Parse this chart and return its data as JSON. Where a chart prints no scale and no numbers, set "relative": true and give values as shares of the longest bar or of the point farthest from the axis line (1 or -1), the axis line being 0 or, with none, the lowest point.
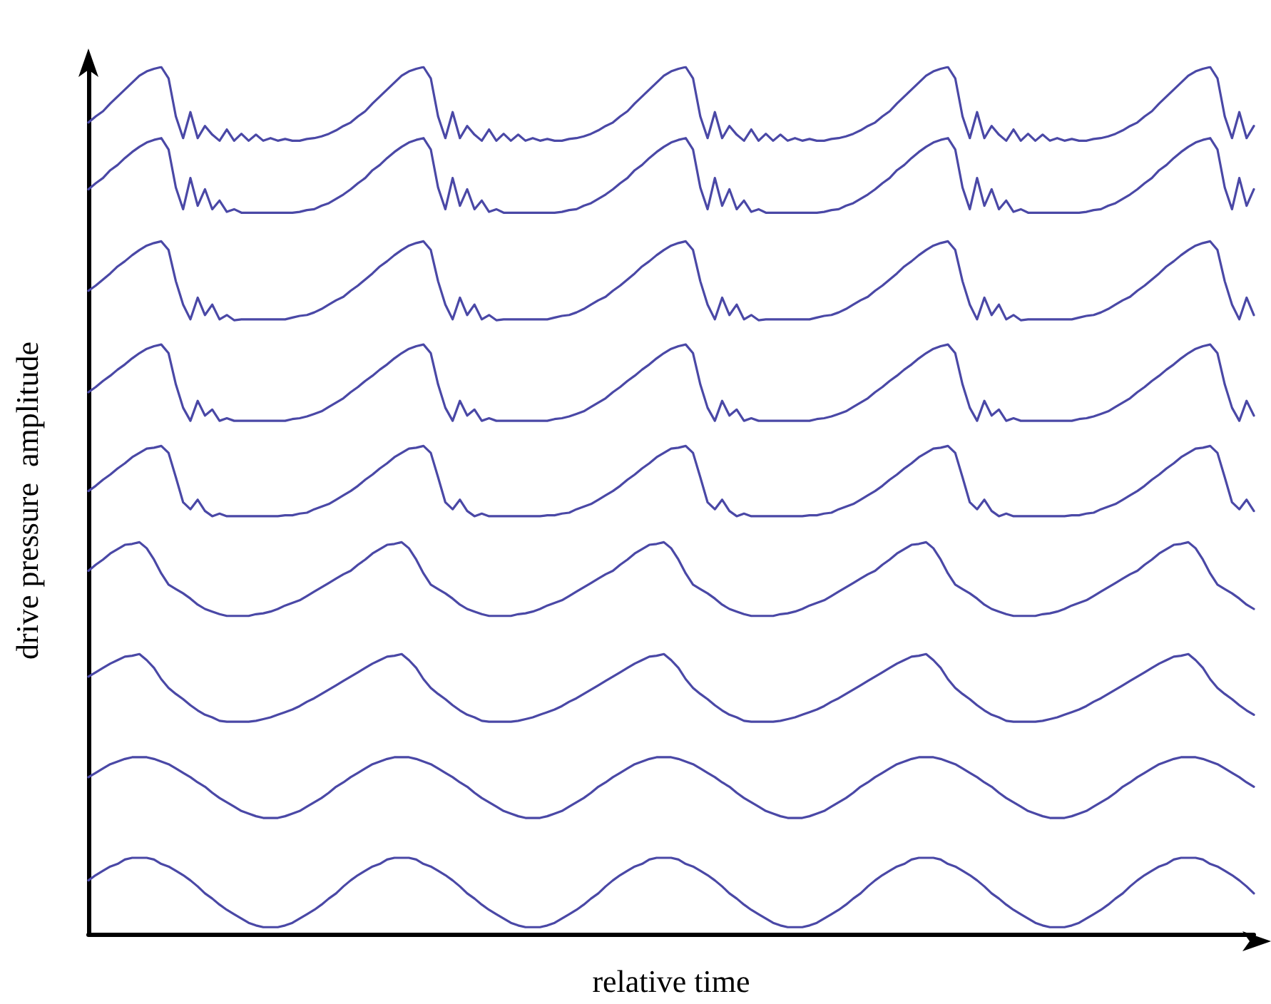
{
  "chart_data": {
    "type": "line",
    "xlabel": "relative time",
    "ylabel": "drive pressure  amplitude",
    "relative": true,
    "grid": false,
    "line_style": "solid",
    "categories": [
      null,
      null,
      null,
      null,
      null,
      null,
      null,
      null,
      null,
      null,
      null,
      null,
      null,
      null,
      null,
      null,
      null,
      null,
      null,
      null,
      null,
      null,
      null,
      null,
      null,
      null,
      null,
      null,
      null,
      null,
      null,
      null,
      null,
      null,
      null,
      null,
      null,
      null,
      null,
      null,
      null,
      null,
      null,
      null,
      null,
      null,
      null,
      null,
      null,
      null,
      null,
      null,
      null,
      null,
      null,
      null,
      null,
      null,
      null,
      null,
      null,
      null,
      null,
      null,
      null,
      null,
      null,
      null,
      null,
      null,
      null,
      null,
      null,
      null,
      null,
      null,
      null,
      null,
      null,
      null,
      null,
      null,
      null,
      null,
      null,
      null,
      null,
      null,
      null,
      null,
      null,
      null,
      null,
      null,
      null,
      null,
      null,
      null,
      null,
      null,
      null,
      null,
      null,
      null,
      null,
      null,
      null,
      null,
      null,
      null,
      null,
      null,
      null,
      null,
      null,
      null,
      null,
      null,
      null,
      null,
      null,
      null,
      null,
      null,
      null,
      null,
      null,
      null,
      null,
      null,
      null,
      null,
      null,
      null,
      null,
      null,
      null,
      null,
      null,
      null,
      null,
      null,
      null,
      null,
      null,
      null,
      null,
      null,
      null,
      null,
      null,
      null,
      null,
      null,
      null,
      null,
      null,
      null,
      null,
      null,
      null
    ],
    "series": [
      {
        "color": "#4a48a6",
        "values": [
          0.936,
          0.943,
          0.949,
          0.958,
          0.966,
          0.974,
          0.982,
          0.99,
          0.995,
          0.998,
          1,
          0.987,
          0.943,
          0.918,
          0.948,
          0.918,
          0.932,
          0.922,
          0.915,
          0.928,
          0.915,
          0.923,
          0.915,
          0.922,
          0.915,
          0.918,
          0.915,
          0.917,
          0.915,
          0.915,
          0.917,
          0.918,
          0.92,
          0.923,
          0.927,
          0.932,
          0.936,
          0.943,
          0.949,
          0.958,
          0.966,
          0.974,
          0.982,
          0.99,
          0.995,
          0.998,
          1,
          0.987,
          0.943,
          0.918,
          0.948,
          0.918,
          0.932,
          0.922,
          0.915,
          0.928,
          0.915,
          0.923,
          0.915,
          0.922,
          0.915,
          0.918,
          0.915,
          0.917,
          0.915,
          0.915,
          0.917,
          0.918,
          0.92,
          0.923,
          0.927,
          0.932,
          0.936,
          0.943,
          0.949,
          0.958,
          0.966,
          0.974,
          0.982,
          0.99,
          0.995,
          0.998,
          1,
          0.987,
          0.943,
          0.918,
          0.948,
          0.918,
          0.932,
          0.922,
          0.915,
          0.928,
          0.915,
          0.923,
          0.915,
          0.922,
          0.915,
          0.918,
          0.915,
          0.917,
          0.915,
          0.915,
          0.917,
          0.918,
          0.92,
          0.923,
          0.927,
          0.932,
          0.936,
          0.943,
          0.949,
          0.958,
          0.966,
          0.974,
          0.982,
          0.99,
          0.995,
          0.998,
          1,
          0.987,
          0.943,
          0.918,
          0.948,
          0.918,
          0.932,
          0.922,
          0.915,
          0.928,
          0.915,
          0.923,
          0.915,
          0.922,
          0.915,
          0.918,
          0.915,
          0.917,
          0.915,
          0.915,
          0.917,
          0.918,
          0.92,
          0.923,
          0.927,
          0.932,
          0.936,
          0.943,
          0.949,
          0.958,
          0.966,
          0.974,
          0.982,
          0.99,
          0.995,
          0.998,
          1,
          0.987,
          0.943,
          0.918,
          0.948,
          0.918,
          0.932
        ]
      },
      {
        "color": "#4a48a6",
        "values": [
          0.859,
          0.866,
          0.872,
          0.881,
          0.887,
          0.895,
          0.902,
          0.908,
          0.913,
          0.916,
          0.918,
          0.905,
          0.861,
          0.836,
          0.872,
          0.84,
          0.859,
          0.836,
          0.846,
          0.833,
          0.836,
          0.832,
          0.832,
          0.832,
          0.832,
          0.832,
          0.832,
          0.832,
          0.832,
          0.833,
          0.835,
          0.836,
          0.84,
          0.843,
          0.848,
          0.853,
          0.859,
          0.866,
          0.872,
          0.881,
          0.887,
          0.895,
          0.902,
          0.908,
          0.913,
          0.916,
          0.918,
          0.905,
          0.861,
          0.836,
          0.872,
          0.84,
          0.859,
          0.836,
          0.846,
          0.833,
          0.836,
          0.832,
          0.832,
          0.832,
          0.832,
          0.832,
          0.832,
          0.832,
          0.832,
          0.833,
          0.835,
          0.836,
          0.84,
          0.843,
          0.848,
          0.853,
          0.859,
          0.866,
          0.872,
          0.881,
          0.887,
          0.895,
          0.902,
          0.908,
          0.913,
          0.916,
          0.918,
          0.905,
          0.861,
          0.836,
          0.872,
          0.84,
          0.859,
          0.836,
          0.846,
          0.833,
          0.836,
          0.832,
          0.832,
          0.832,
          0.832,
          0.832,
          0.832,
          0.832,
          0.832,
          0.833,
          0.835,
          0.836,
          0.84,
          0.843,
          0.848,
          0.853,
          0.859,
          0.866,
          0.872,
          0.881,
          0.887,
          0.895,
          0.902,
          0.908,
          0.913,
          0.916,
          0.918,
          0.905,
          0.861,
          0.836,
          0.872,
          0.84,
          0.859,
          0.836,
          0.846,
          0.833,
          0.836,
          0.832,
          0.832,
          0.832,
          0.832,
          0.832,
          0.832,
          0.832,
          0.832,
          0.833,
          0.835,
          0.836,
          0.84,
          0.843,
          0.848,
          0.853,
          0.859,
          0.866,
          0.872,
          0.881,
          0.887,
          0.895,
          0.902,
          0.908,
          0.913,
          0.916,
          0.918,
          0.905,
          0.861,
          0.836,
          0.872,
          0.84,
          0.859
        ]
      },
      {
        "color": "#4a48a6",
        "values": [
          0.742,
          0.748,
          0.755,
          0.762,
          0.77,
          0.776,
          0.783,
          0.789,
          0.794,
          0.797,
          0.799,
          0.789,
          0.753,
          0.726,
          0.709,
          0.734,
          0.714,
          0.726,
          0.709,
          0.714,
          0.708,
          0.709,
          0.709,
          0.709,
          0.709,
          0.709,
          0.709,
          0.709,
          0.711,
          0.713,
          0.714,
          0.717,
          0.721,
          0.726,
          0.731,
          0.735,
          0.742,
          0.748,
          0.755,
          0.762,
          0.77,
          0.776,
          0.783,
          0.789,
          0.794,
          0.797,
          0.799,
          0.789,
          0.753,
          0.726,
          0.709,
          0.734,
          0.714,
          0.726,
          0.709,
          0.714,
          0.708,
          0.709,
          0.709,
          0.709,
          0.709,
          0.709,
          0.709,
          0.709,
          0.711,
          0.713,
          0.714,
          0.717,
          0.721,
          0.726,
          0.731,
          0.735,
          0.742,
          0.748,
          0.755,
          0.762,
          0.77,
          0.776,
          0.783,
          0.789,
          0.794,
          0.797,
          0.799,
          0.789,
          0.753,
          0.726,
          0.709,
          0.734,
          0.714,
          0.726,
          0.709,
          0.714,
          0.708,
          0.709,
          0.709,
          0.709,
          0.709,
          0.709,
          0.709,
          0.709,
          0.711,
          0.713,
          0.714,
          0.717,
          0.721,
          0.726,
          0.731,
          0.735,
          0.742,
          0.748,
          0.755,
          0.762,
          0.77,
          0.776,
          0.783,
          0.789,
          0.794,
          0.797,
          0.799,
          0.789,
          0.753,
          0.726,
          0.709,
          0.734,
          0.714,
          0.726,
          0.709,
          0.714,
          0.708,
          0.709,
          0.709,
          0.709,
          0.709,
          0.709,
          0.709,
          0.709,
          0.711,
          0.713,
          0.714,
          0.717,
          0.721,
          0.726,
          0.731,
          0.735,
          0.742,
          0.748,
          0.755,
          0.762,
          0.77,
          0.776,
          0.783,
          0.789,
          0.794,
          0.797,
          0.799,
          0.789,
          0.753,
          0.726,
          0.709,
          0.734,
          0.714
        ]
      },
      {
        "color": "#4a48a6",
        "values": [
          0.625,
          0.631,
          0.638,
          0.644,
          0.651,
          0.657,
          0.664,
          0.67,
          0.675,
          0.678,
          0.68,
          0.67,
          0.634,
          0.607,
          0.592,
          0.615,
          0.598,
          0.605,
          0.592,
          0.595,
          0.592,
          0.592,
          0.592,
          0.592,
          0.592,
          0.592,
          0.592,
          0.592,
          0.594,
          0.595,
          0.597,
          0.6,
          0.603,
          0.608,
          0.613,
          0.618,
          0.625,
          0.631,
          0.638,
          0.644,
          0.651,
          0.657,
          0.664,
          0.67,
          0.675,
          0.678,
          0.68,
          0.67,
          0.634,
          0.607,
          0.592,
          0.615,
          0.598,
          0.605,
          0.592,
          0.595,
          0.592,
          0.592,
          0.592,
          0.592,
          0.592,
          0.592,
          0.592,
          0.592,
          0.594,
          0.595,
          0.597,
          0.6,
          0.603,
          0.608,
          0.613,
          0.618,
          0.625,
          0.631,
          0.638,
          0.644,
          0.651,
          0.657,
          0.664,
          0.67,
          0.675,
          0.678,
          0.68,
          0.67,
          0.634,
          0.607,
          0.592,
          0.615,
          0.598,
          0.605,
          0.592,
          0.595,
          0.592,
          0.592,
          0.592,
          0.592,
          0.592,
          0.592,
          0.592,
          0.592,
          0.594,
          0.595,
          0.597,
          0.6,
          0.603,
          0.608,
          0.613,
          0.618,
          0.625,
          0.631,
          0.638,
          0.644,
          0.651,
          0.657,
          0.664,
          0.67,
          0.675,
          0.678,
          0.68,
          0.67,
          0.634,
          0.607,
          0.592,
          0.615,
          0.598,
          0.605,
          0.592,
          0.595,
          0.592,
          0.592,
          0.592,
          0.592,
          0.592,
          0.592,
          0.592,
          0.592,
          0.594,
          0.595,
          0.597,
          0.6,
          0.603,
          0.608,
          0.613,
          0.618,
          0.625,
          0.631,
          0.638,
          0.644,
          0.651,
          0.657,
          0.664,
          0.67,
          0.675,
          0.678,
          0.68,
          0.67,
          0.634,
          0.607,
          0.592,
          0.615,
          0.598
        ]
      },
      {
        "color": "#4a48a6",
        "values": [
          0.511,
          0.517,
          0.524,
          0.53,
          0.537,
          0.543,
          0.55,
          0.555,
          0.56,
          0.561,
          0.563,
          0.555,
          0.527,
          0.498,
          0.49,
          0.501,
          0.488,
          0.482,
          0.485,
          0.482,
          0.482,
          0.482,
          0.482,
          0.482,
          0.482,
          0.482,
          0.482,
          0.483,
          0.483,
          0.485,
          0.486,
          0.49,
          0.493,
          0.496,
          0.501,
          0.506,
          0.511,
          0.517,
          0.524,
          0.53,
          0.537,
          0.543,
          0.55,
          0.555,
          0.56,
          0.561,
          0.563,
          0.555,
          0.527,
          0.498,
          0.49,
          0.501,
          0.488,
          0.482,
          0.485,
          0.482,
          0.482,
          0.482,
          0.482,
          0.482,
          0.482,
          0.482,
          0.482,
          0.483,
          0.483,
          0.485,
          0.486,
          0.49,
          0.493,
          0.496,
          0.501,
          0.506,
          0.511,
          0.517,
          0.524,
          0.53,
          0.537,
          0.543,
          0.55,
          0.555,
          0.56,
          0.561,
          0.563,
          0.555,
          0.527,
          0.498,
          0.49,
          0.501,
          0.488,
          0.482,
          0.485,
          0.482,
          0.482,
          0.482,
          0.482,
          0.482,
          0.482,
          0.482,
          0.482,
          0.483,
          0.483,
          0.485,
          0.486,
          0.49,
          0.493,
          0.496,
          0.501,
          0.506,
          0.511,
          0.517,
          0.524,
          0.53,
          0.537,
          0.543,
          0.55,
          0.555,
          0.56,
          0.561,
          0.563,
          0.555,
          0.527,
          0.498,
          0.49,
          0.501,
          0.488,
          0.482,
          0.485,
          0.482,
          0.482,
          0.482,
          0.482,
          0.482,
          0.482,
          0.482,
          0.482,
          0.483,
          0.483,
          0.485,
          0.486,
          0.49,
          0.493,
          0.496,
          0.501,
          0.506,
          0.511,
          0.517,
          0.524,
          0.53,
          0.537,
          0.543,
          0.55,
          0.555,
          0.56,
          0.561,
          0.563,
          0.555,
          0.527,
          0.498,
          0.49,
          0.501,
          0.488
        ]
      },
      {
        "color": "#4a48a6",
        "values": [
          0.419,
          0.426,
          0.432,
          0.439,
          0.444,
          0.449,
          0.45,
          0.452,
          0.445,
          0.432,
          0.416,
          0.403,
          0.398,
          0.393,
          0.387,
          0.38,
          0.375,
          0.372,
          0.369,
          0.367,
          0.367,
          0.367,
          0.367,
          0.369,
          0.37,
          0.372,
          0.375,
          0.379,
          0.382,
          0.385,
          0.39,
          0.395,
          0.4,
          0.405,
          0.41,
          0.415,
          0.419,
          0.426,
          0.432,
          0.439,
          0.444,
          0.449,
          0.45,
          0.452,
          0.445,
          0.432,
          0.416,
          0.403,
          0.398,
          0.393,
          0.387,
          0.38,
          0.375,
          0.372,
          0.369,
          0.367,
          0.367,
          0.367,
          0.367,
          0.369,
          0.37,
          0.372,
          0.375,
          0.379,
          0.382,
          0.385,
          0.39,
          0.395,
          0.4,
          0.405,
          0.41,
          0.415,
          0.419,
          0.426,
          0.432,
          0.439,
          0.444,
          0.449,
          0.45,
          0.452,
          0.445,
          0.432,
          0.416,
          0.403,
          0.398,
          0.393,
          0.387,
          0.38,
          0.375,
          0.372,
          0.369,
          0.367,
          0.367,
          0.367,
          0.367,
          0.369,
          0.37,
          0.372,
          0.375,
          0.379,
          0.382,
          0.385,
          0.39,
          0.395,
          0.4,
          0.405,
          0.41,
          0.415,
          0.419,
          0.426,
          0.432,
          0.439,
          0.444,
          0.449,
          0.45,
          0.452,
          0.445,
          0.432,
          0.416,
          0.403,
          0.398,
          0.393,
          0.387,
          0.38,
          0.375,
          0.372,
          0.369,
          0.367,
          0.367,
          0.367,
          0.367,
          0.369,
          0.37,
          0.372,
          0.375,
          0.379,
          0.382,
          0.385,
          0.39,
          0.395,
          0.4,
          0.405,
          0.41,
          0.415,
          0.419,
          0.426,
          0.432,
          0.439,
          0.444,
          0.449,
          0.45,
          0.452,
          0.445,
          0.432,
          0.416,
          0.403,
          0.398,
          0.393,
          0.387,
          0.38,
          0.375
        ]
      },
      {
        "color": "#4a48a6",
        "values": [
          0.297,
          0.302,
          0.307,
          0.312,
          0.316,
          0.32,
          0.321,
          0.323,
          0.316,
          0.307,
          0.294,
          0.284,
          0.277,
          0.271,
          0.264,
          0.258,
          0.253,
          0.25,
          0.246,
          0.245,
          0.245,
          0.245,
          0.245,
          0.246,
          0.248,
          0.25,
          0.253,
          0.256,
          0.259,
          0.263,
          0.268,
          0.272,
          0.277,
          0.282,
          0.287,
          0.292,
          0.297,
          0.302,
          0.307,
          0.312,
          0.316,
          0.32,
          0.321,
          0.323,
          0.316,
          0.307,
          0.294,
          0.284,
          0.277,
          0.271,
          0.264,
          0.258,
          0.253,
          0.25,
          0.246,
          0.245,
          0.245,
          0.245,
          0.245,
          0.246,
          0.248,
          0.25,
          0.253,
          0.256,
          0.259,
          0.263,
          0.268,
          0.272,
          0.277,
          0.282,
          0.287,
          0.292,
          0.297,
          0.302,
          0.307,
          0.312,
          0.316,
          0.32,
          0.321,
          0.323,
          0.316,
          0.307,
          0.294,
          0.284,
          0.277,
          0.271,
          0.264,
          0.258,
          0.253,
          0.25,
          0.246,
          0.245,
          0.245,
          0.245,
          0.245,
          0.246,
          0.248,
          0.25,
          0.253,
          0.256,
          0.259,
          0.263,
          0.268,
          0.272,
          0.277,
          0.282,
          0.287,
          0.292,
          0.297,
          0.302,
          0.307,
          0.312,
          0.316,
          0.32,
          0.321,
          0.323,
          0.316,
          0.307,
          0.294,
          0.284,
          0.277,
          0.271,
          0.264,
          0.258,
          0.253,
          0.25,
          0.246,
          0.245,
          0.245,
          0.245,
          0.245,
          0.246,
          0.248,
          0.25,
          0.253,
          0.256,
          0.259,
          0.263,
          0.268,
          0.272,
          0.277,
          0.282,
          0.287,
          0.292,
          0.297,
          0.302,
          0.307,
          0.312,
          0.316,
          0.32,
          0.321,
          0.323,
          0.316,
          0.307,
          0.294,
          0.284,
          0.277,
          0.271,
          0.264,
          0.258,
          0.253
        ]
      },
      {
        "color": "#4a48a6",
        "values": [
          0.181,
          0.186,
          0.191,
          0.196,
          0.199,
          0.202,
          0.204,
          0.204,
          0.204,
          0.202,
          0.199,
          0.196,
          0.191,
          0.186,
          0.181,
          0.175,
          0.17,
          0.163,
          0.157,
          0.152,
          0.147,
          0.142,
          0.139,
          0.136,
          0.134,
          0.134,
          0.134,
          0.136,
          0.139,
          0.142,
          0.147,
          0.152,
          0.157,
          0.163,
          0.17,
          0.175,
          0.181,
          0.186,
          0.191,
          0.196,
          0.199,
          0.202,
          0.204,
          0.204,
          0.204,
          0.202,
          0.199,
          0.196,
          0.191,
          0.186,
          0.181,
          0.175,
          0.17,
          0.163,
          0.157,
          0.152,
          0.147,
          0.142,
          0.139,
          0.136,
          0.134,
          0.134,
          0.134,
          0.136,
          0.139,
          0.142,
          0.147,
          0.152,
          0.157,
          0.163,
          0.17,
          0.175,
          0.181,
          0.186,
          0.191,
          0.196,
          0.199,
          0.202,
          0.204,
          0.204,
          0.204,
          0.202,
          0.199,
          0.196,
          0.191,
          0.186,
          0.181,
          0.175,
          0.17,
          0.163,
          0.157,
          0.152,
          0.147,
          0.142,
          0.139,
          0.136,
          0.134,
          0.134,
          0.134,
          0.136,
          0.139,
          0.142,
          0.147,
          0.152,
          0.157,
          0.163,
          0.17,
          0.175,
          0.181,
          0.186,
          0.191,
          0.196,
          0.199,
          0.202,
          0.204,
          0.204,
          0.204,
          0.202,
          0.199,
          0.196,
          0.191,
          0.186,
          0.181,
          0.175,
          0.17,
          0.163,
          0.157,
          0.152,
          0.147,
          0.142,
          0.139,
          0.136,
          0.134,
          0.134,
          0.134,
          0.136,
          0.139,
          0.142,
          0.147,
          0.152,
          0.157,
          0.163,
          0.17,
          0.175,
          0.181,
          0.186,
          0.191,
          0.196,
          0.199,
          0.202,
          0.204,
          0.204,
          0.204,
          0.202,
          0.199,
          0.196,
          0.191,
          0.186,
          0.181,
          0.175,
          0.17
        ]
      },
      {
        "color": "#4a48a6",
        "values": [
          0.062,
          0.068,
          0.073,
          0.078,
          0.081,
          0.086,
          0.088,
          0.088,
          0.088,
          0.086,
          0.081,
          0.078,
          0.073,
          0.068,
          0.062,
          0.055,
          0.047,
          0.041,
          0.034,
          0.028,
          0.023,
          0.018,
          0.013,
          0.01,
          0.008,
          0.008,
          0.008,
          0.01,
          0.013,
          0.018,
          0.023,
          0.028,
          0.034,
          0.041,
          0.047,
          0.055,
          0.062,
          0.068,
          0.073,
          0.078,
          0.081,
          0.086,
          0.088,
          0.088,
          0.088,
          0.086,
          0.081,
          0.078,
          0.073,
          0.068,
          0.062,
          0.055,
          0.047,
          0.041,
          0.034,
          0.028,
          0.023,
          0.018,
          0.013,
          0.01,
          0.008,
          0.008,
          0.008,
          0.01,
          0.013,
          0.018,
          0.023,
          0.028,
          0.034,
          0.041,
          0.047,
          0.055,
          0.062,
          0.068,
          0.073,
          0.078,
          0.081,
          0.086,
          0.088,
          0.088,
          0.088,
          0.086,
          0.081,
          0.078,
          0.073,
          0.068,
          0.062,
          0.055,
          0.047,
          0.041,
          0.034,
          0.028,
          0.023,
          0.018,
          0.013,
          0.01,
          0.008,
          0.008,
          0.008,
          0.01,
          0.013,
          0.018,
          0.023,
          0.028,
          0.034,
          0.041,
          0.047,
          0.055,
          0.062,
          0.068,
          0.073,
          0.078,
          0.081,
          0.086,
          0.088,
          0.088,
          0.088,
          0.086,
          0.081,
          0.078,
          0.073,
          0.068,
          0.062,
          0.055,
          0.047,
          0.041,
          0.034,
          0.028,
          0.023,
          0.018,
          0.013,
          0.01,
          0.008,
          0.008,
          0.008,
          0.01,
          0.013,
          0.018,
          0.023,
          0.028,
          0.034,
          0.041,
          0.047,
          0.055,
          0.062,
          0.068,
          0.073,
          0.078,
          0.081,
          0.086,
          0.088,
          0.088,
          0.088,
          0.086,
          0.081,
          0.078,
          0.073,
          0.068,
          0.062,
          0.055,
          0.047
        ]
      }
    ]
  }
}
